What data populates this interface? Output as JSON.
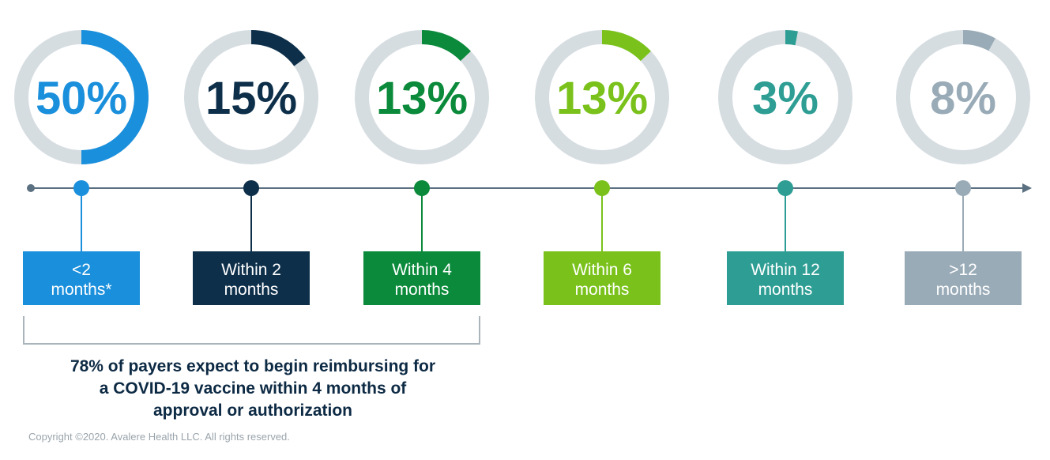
{
  "chart_data": {
    "type": "donut-timeline",
    "categories": [
      {
        "label_lines": [
          "<2",
          "months*"
        ],
        "value": 50,
        "value_label": "50%",
        "color": "#1a8fdc"
      },
      {
        "label_lines": [
          "Within 2",
          "months"
        ],
        "value": 15,
        "value_label": "15%",
        "color": "#0d2f4a"
      },
      {
        "label_lines": [
          "Within 4",
          "months"
        ],
        "value": 13,
        "value_label": "13%",
        "color": "#0a8a3a"
      },
      {
        "label_lines": [
          "Within 6",
          "months"
        ],
        "value": 13,
        "value_label": "13%",
        "color": "#7ac21b"
      },
      {
        "label_lines": [
          "Within 12",
          "months"
        ],
        "value": 3,
        "value_label": "3%",
        "color": "#2e9e94"
      },
      {
        "label_lines": [
          ">12",
          "months"
        ],
        "value": 8,
        "value_label": "8%",
        "color": "#9aabb8"
      }
    ],
    "track_color": "#d6dde1",
    "axis_color": "#5b7080",
    "bracket_color": "#aab4bb"
  },
  "summary_lines": [
    "78% of payers expect to begin reimbursing for",
    "a COVID-19 vaccine within 4 months of",
    "approval or authorization"
  ],
  "copyright": "Copyright ©2020. Avalere Health LLC. All rights reserved."
}
